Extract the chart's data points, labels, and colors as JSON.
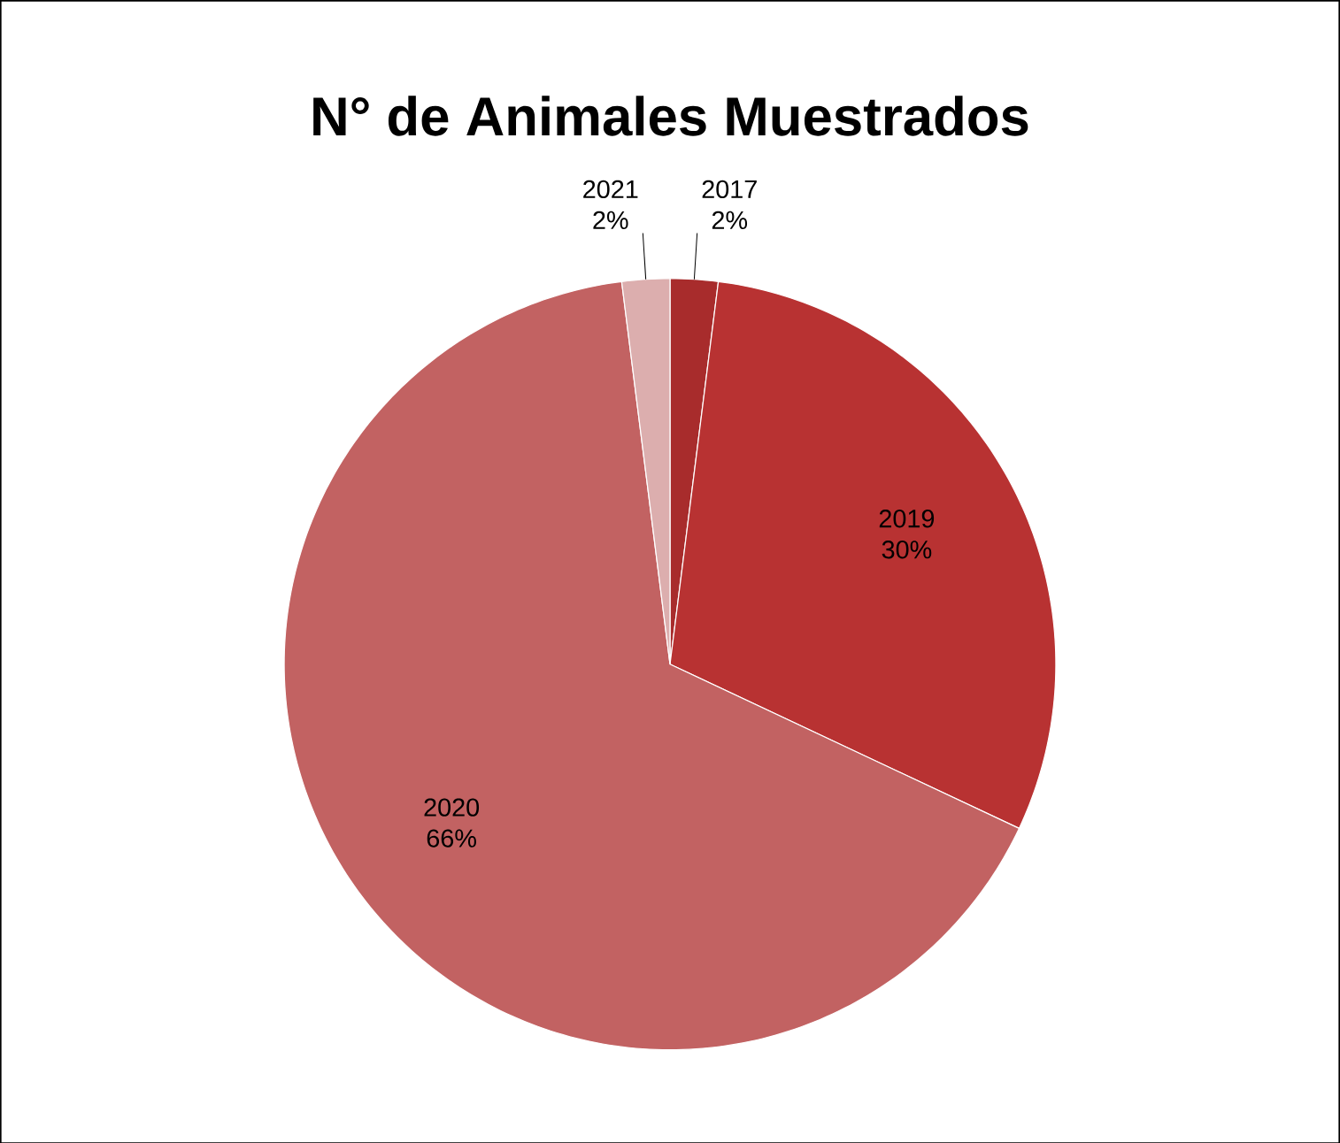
{
  "chart_data": {
    "type": "pie",
    "title": "N° de Animales Muestrados",
    "categories": [
      "2017",
      "2019",
      "2020",
      "2021"
    ],
    "values": [
      2,
      30,
      66,
      2
    ],
    "value_labels": [
      "2%",
      "30%",
      "66%",
      "2%"
    ],
    "colors": [
      "#a82c2c",
      "#b83232",
      "#c26262",
      "#dcaeae"
    ]
  }
}
